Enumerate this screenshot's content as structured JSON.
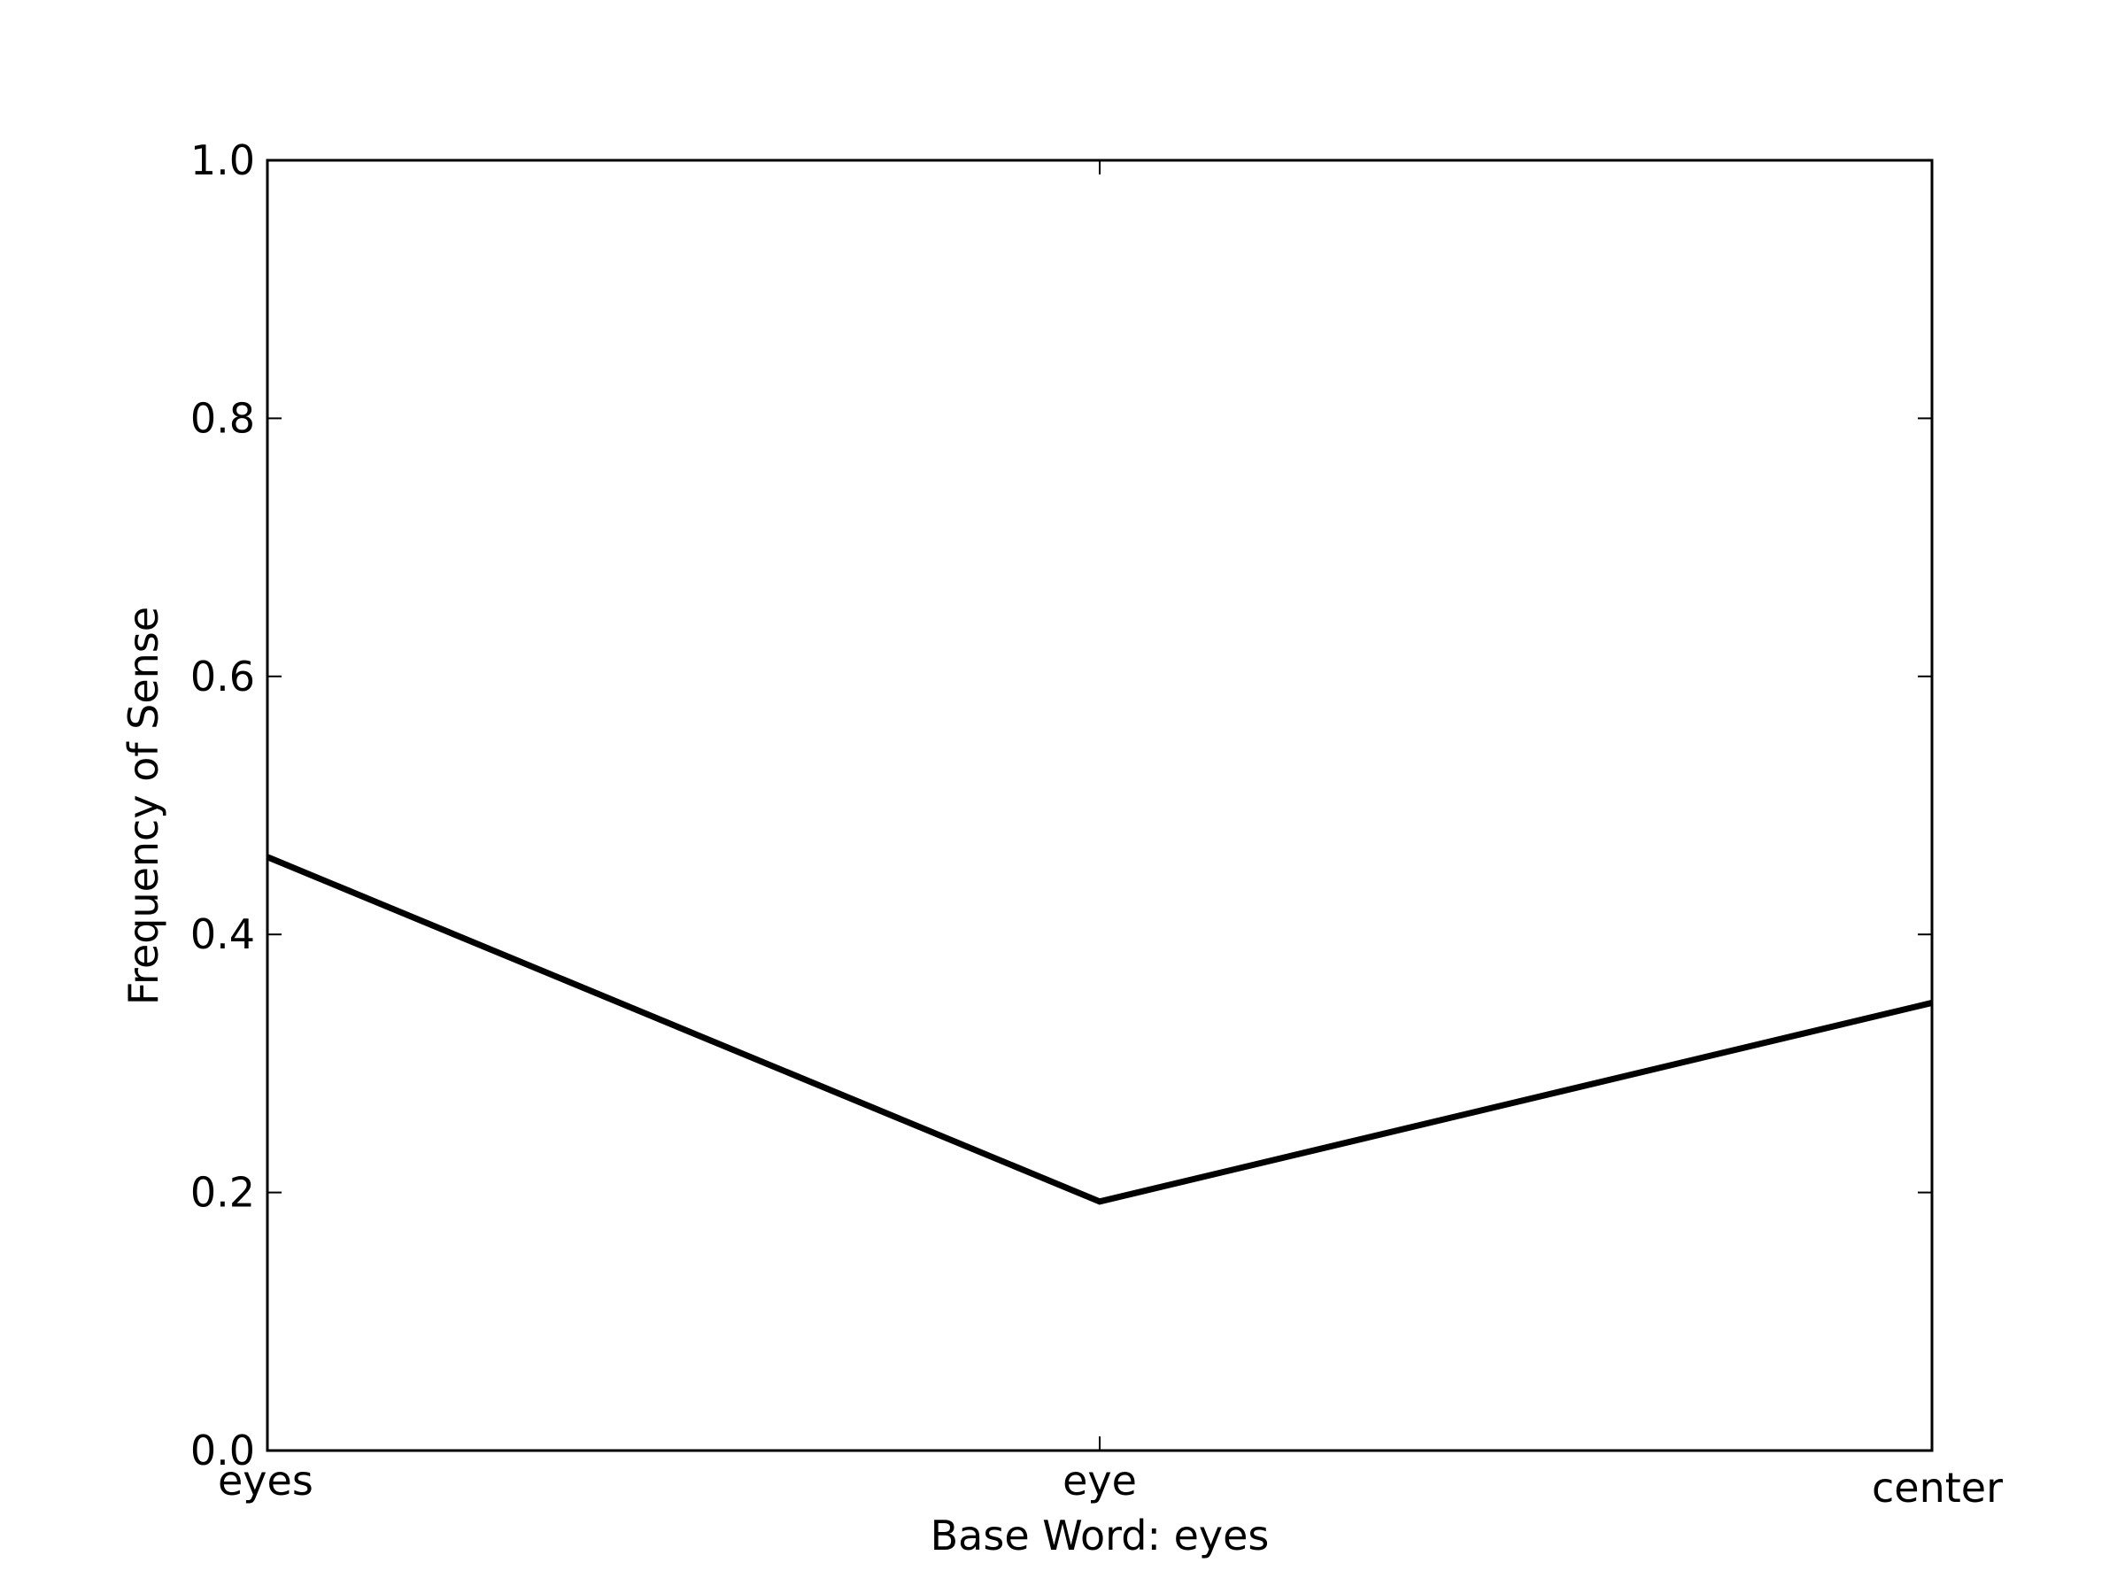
{
  "chart_data": {
    "type": "line",
    "title": "",
    "xlabel": "Base Word: eyes",
    "ylabel": "Frequency of Sense",
    "categories": [
      "eyes",
      "eye",
      "center"
    ],
    "series": [
      {
        "values": [
          0.46,
          0.193,
          0.347
        ]
      }
    ],
    "ylim": [
      0.0,
      1.0
    ],
    "yticks": [
      "0.0",
      "0.2",
      "0.4",
      "0.6",
      "0.8",
      "1.0"
    ],
    "grid": false,
    "legend": "none",
    "line_color": "#000000"
  }
}
